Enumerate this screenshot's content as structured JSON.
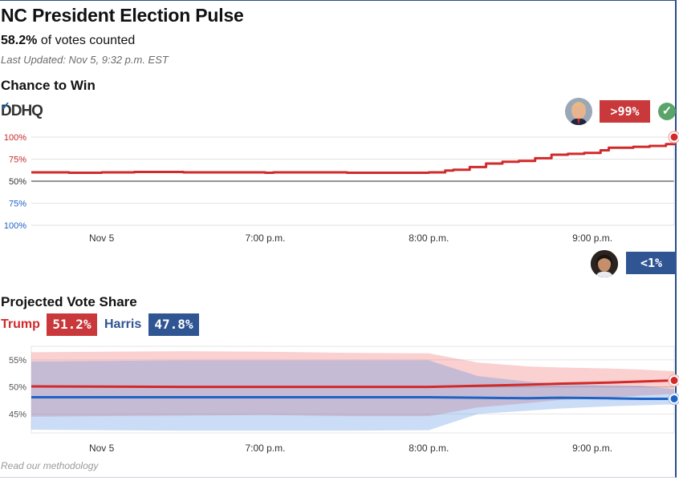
{
  "header": {
    "title": "NC President Election Pulse",
    "counted_pct": "58.2%",
    "counted_suffix": "of votes counted",
    "last_updated": "Last Updated: Nov 5, 9:32 p.m. EST"
  },
  "chance": {
    "heading": "Chance to Win",
    "logo_text": "DDHQ",
    "leader_value": ">99%",
    "trailer_value": "<1%"
  },
  "vote_share": {
    "heading": "Projected Vote Share",
    "candidates": [
      {
        "name": "Trump",
        "value": "51.2%",
        "color": "#d12a2a"
      },
      {
        "name": "Harris",
        "value": "47.8%",
        "color": "#2f5592"
      }
    ]
  },
  "footer": {
    "methodology": "Read our methodology"
  },
  "colors": {
    "trump": "#d12a2a",
    "harris": "#1f63c3",
    "badge_blue": "#2f5592",
    "badge_red": "#c9383a"
  },
  "chart_data": [
    {
      "type": "line",
      "title": "Chance to Win",
      "y_tick_labels": [
        "100%",
        "75%",
        "50%",
        "75%",
        "100%"
      ],
      "x_tick_labels": [
        "Nov 5",
        "7:00 p.m.",
        "8:00 p.m.",
        "9:00 p.m."
      ],
      "x_ticks": [
        -1,
        0,
        1,
        2
      ],
      "xlim": [
        -1.43,
        2.5
      ],
      "ylim": [
        0,
        100
      ],
      "series": [
        {
          "name": "Trump",
          "color": "#d12a2a",
          "x": [
            -1.43,
            -1.2,
            -1.0,
            -0.8,
            -0.5,
            -0.2,
            0.0,
            0.05,
            0.2,
            0.5,
            0.8,
            1.0,
            1.1,
            1.15,
            1.25,
            1.35,
            1.45,
            1.55,
            1.65,
            1.75,
            1.85,
            1.95,
            2.05,
            2.1,
            2.25,
            2.35,
            2.45,
            2.5
          ],
          "values": [
            60,
            59.5,
            60,
            60.5,
            60,
            60,
            59.5,
            60,
            60,
            59.5,
            59.5,
            60,
            62,
            63,
            66,
            70,
            72,
            73,
            76,
            80,
            81,
            82,
            85,
            88,
            89,
            90,
            92,
            100
          ]
        }
      ]
    },
    {
      "type": "area",
      "title": "Projected Vote Share",
      "y_tick_labels": [
        "55%",
        "50%",
        "45%"
      ],
      "y_ticks": [
        55,
        50,
        45
      ],
      "x_tick_labels": [
        "Nov 5",
        "7:00 p.m.",
        "8:00 p.m.",
        "9:00 p.m."
      ],
      "x_ticks": [
        -1,
        0,
        1,
        2
      ],
      "xlim": [
        -1.43,
        2.5
      ],
      "ylim": [
        41.5,
        57.5
      ],
      "series": [
        {
          "name": "Trump",
          "color": "#d12a2a",
          "x": [
            -1.43,
            -0.5,
            0.0,
            0.5,
            1.0,
            1.3,
            1.6,
            1.8,
            2.1,
            2.3,
            2.5
          ],
          "values": [
            50.1,
            50.0,
            50.0,
            50.0,
            50.0,
            50.2,
            50.4,
            50.6,
            50.8,
            51.0,
            51.2
          ],
          "upper": [
            56.4,
            56.6,
            56.5,
            56.3,
            56.2,
            54.5,
            53.8,
            53.6,
            53.4,
            53.2,
            52.9
          ],
          "lower": [
            44.5,
            44.7,
            44.8,
            44.6,
            44.6,
            46.2,
            47.0,
            47.6,
            48.0,
            48.4,
            48.7
          ]
        },
        {
          "name": "Harris",
          "color": "#1f63c3",
          "x": [
            -1.43,
            -0.5,
            0.0,
            0.5,
            1.0,
            1.3,
            1.6,
            1.8,
            2.1,
            2.3,
            2.5
          ],
          "values": [
            48.1,
            48.1,
            48.1,
            48.1,
            48.1,
            48.0,
            47.9,
            48.0,
            47.9,
            47.8,
            47.8
          ],
          "upper": [
            54.7,
            54.9,
            54.9,
            54.9,
            54.9,
            52.0,
            51.0,
            50.6,
            50.3,
            50.2,
            49.6
          ],
          "lower": [
            42.1,
            41.9,
            41.9,
            41.9,
            42.0,
            45.0,
            45.6,
            46.0,
            46.4,
            46.6,
            46.8
          ]
        }
      ]
    }
  ]
}
